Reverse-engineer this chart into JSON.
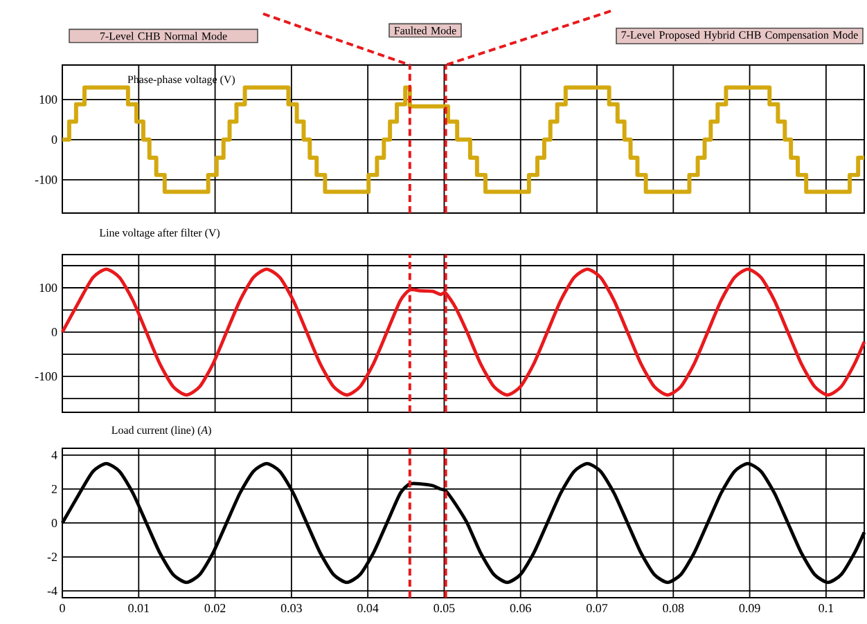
{
  "chart_data": [
    {
      "type": "step",
      "title": "Phase-phase voltage (V)",
      "color": "#d4a910",
      "xlim": [
        0,
        0.105
      ],
      "ylim": [
        -183,
        186
      ],
      "xticks": [
        0,
        0.01,
        0.02,
        0.03,
        0.04,
        0.05,
        0.06,
        0.07,
        0.08,
        0.09,
        0.1
      ],
      "yticks": [
        100,
        0,
        -100
      ],
      "grid": true,
      "tick_labels": "y",
      "x": [
        0,
        0.0009,
        0.0018,
        0.0029,
        0.0086,
        0.0097,
        0.0106,
        0.0114,
        0.0123,
        0.0134,
        0.0191,
        0.0202,
        0.0211,
        0.0219,
        0.0228,
        0.0239,
        0.0296,
        0.0307,
        0.0316,
        0.0324,
        0.0333,
        0.0344,
        0.0401,
        0.0412,
        0.0421,
        0.0429,
        0.0438,
        0.0449,
        0.0455,
        0.0505,
        0.0517,
        0.0534,
        0.0543,
        0.0554,
        0.0611,
        0.0622,
        0.0631,
        0.0639,
        0.0648,
        0.0659,
        0.0716,
        0.0727,
        0.0736,
        0.0744,
        0.0753,
        0.0764,
        0.0821,
        0.0832,
        0.0841,
        0.0849,
        0.0858,
        0.0869,
        0.0926,
        0.0937,
        0.0946,
        0.0954,
        0.0963,
        0.0974,
        0.1031,
        0.1042,
        0.105
      ],
      "values": [
        0,
        45,
        88,
        130,
        88,
        45,
        0,
        -45,
        -88,
        -130,
        -88,
        -45,
        0,
        45,
        88,
        130,
        88,
        45,
        0,
        -45,
        -88,
        -130,
        -88,
        -45,
        0,
        45,
        88,
        130,
        83,
        45,
        0,
        -45,
        -88,
        -130,
        -88,
        -45,
        0,
        45,
        88,
        130,
        88,
        45,
        0,
        -45,
        -88,
        -130,
        -88,
        -45,
        0,
        45,
        88,
        130,
        88,
        45,
        0,
        -45,
        -88,
        -130,
        -88,
        -45,
        -45
      ],
      "ref_lines": [
        {
          "axis": "x",
          "value": 0.0455,
          "color": "#e8191c",
          "line_style": "dashed"
        },
        {
          "axis": "x",
          "value": 0.0502,
          "color": "#e8191c",
          "line_style": "dashed"
        }
      ],
      "annotations": [
        "7-Level CHB Normal Mode",
        "Faulted Mode",
        "7-Level Proposed Hybrid CHB Compensation Mode"
      ]
    },
    {
      "type": "line",
      "title": "Line voltage after filter (V)",
      "color": "#e8191c",
      "xlim": [
        0,
        0.105
      ],
      "ylim": [
        -181,
        175
      ],
      "xticks": [
        0,
        0.01,
        0.02,
        0.03,
        0.04,
        0.05,
        0.06,
        0.07,
        0.08,
        0.09,
        0.1
      ],
      "yticks": [
        {
          "value": 150,
          "label": null
        },
        100,
        {
          "value": 50,
          "label": null
        },
        0,
        {
          "value": -50,
          "label": null
        },
        -100,
        {
          "value": -150,
          "label": null
        }
      ],
      "grid": true,
      "tick_labels": "y",
      "x": [
        0,
        0.00225,
        0.004,
        0.00575,
        0.0075,
        0.00925,
        0.011,
        0.01275,
        0.0145,
        0.01625,
        0.018,
        0.01975,
        0.0215,
        0.02325,
        0.025,
        0.02675,
        0.0285,
        0.03025,
        0.032,
        0.03375,
        0.0355,
        0.03725,
        0.039,
        0.04075,
        0.0425,
        0.04425,
        0.0455,
        0.047,
        0.0485,
        0.0495,
        0.0502,
        0.0515,
        0.053,
        0.05475,
        0.0565,
        0.05825,
        0.06,
        0.06175,
        0.0635,
        0.06525,
        0.067,
        0.06875,
        0.0705,
        0.07225,
        0.074,
        0.07575,
        0.0775,
        0.07925,
        0.081,
        0.08275,
        0.0845,
        0.08625,
        0.088,
        0.08975,
        0.0915,
        0.09325,
        0.095,
        0.09675,
        0.0985,
        0.10025,
        0.102,
        0.10375,
        0.105
      ],
      "values": [
        0,
        71,
        123,
        142,
        123,
        71,
        0,
        -71,
        -123,
        -142,
        -123,
        -71,
        0,
        71,
        123,
        142,
        123,
        71,
        0,
        -71,
        -123,
        -142,
        -123,
        -71,
        0,
        71,
        95,
        93,
        92,
        85,
        88,
        55,
        0,
        -71,
        -123,
        -142,
        -123,
        -71,
        0,
        71,
        123,
        142,
        123,
        71,
        0,
        -71,
        -123,
        -142,
        -123,
        -71,
        0,
        71,
        123,
        142,
        123,
        71,
        0,
        -71,
        -123,
        -142,
        -123,
        -71,
        -22
      ],
      "ref_lines": [
        {
          "axis": "x",
          "value": 0.0455,
          "color": "#e8191c",
          "line_style": "dashed"
        },
        {
          "axis": "x",
          "value": 0.0502,
          "color": "#e8191c",
          "line_style": "dashed"
        }
      ]
    },
    {
      "type": "line",
      "title": "Load current (line) (*A*)",
      "color": "#000000",
      "xlim": [
        0,
        0.105
      ],
      "ylim": [
        -4.4,
        4.4
      ],
      "xticks": [
        0,
        0.01,
        0.02,
        0.03,
        0.04,
        0.05,
        0.06,
        0.07,
        0.08,
        0.09,
        0.1
      ],
      "yticks": [
        4,
        2,
        0,
        -2,
        -4
      ],
      "grid": true,
      "x": [
        0,
        0.00225,
        0.004,
        0.00575,
        0.0075,
        0.00925,
        0.011,
        0.01275,
        0.0145,
        0.01625,
        0.018,
        0.01975,
        0.0215,
        0.02325,
        0.025,
        0.02675,
        0.0285,
        0.03025,
        0.032,
        0.03375,
        0.0355,
        0.03725,
        0.039,
        0.04075,
        0.0425,
        0.04425,
        0.0455,
        0.047,
        0.0485,
        0.0495,
        0.0502,
        0.0515,
        0.053,
        0.05475,
        0.0565,
        0.05825,
        0.06,
        0.06175,
        0.0635,
        0.06525,
        0.067,
        0.06875,
        0.0705,
        0.07225,
        0.074,
        0.07575,
        0.0775,
        0.07925,
        0.081,
        0.08275,
        0.0845,
        0.08625,
        0.088,
        0.08975,
        0.0915,
        0.09325,
        0.095,
        0.09675,
        0.0985,
        0.10025,
        0.102,
        0.10375,
        0.105
      ],
      "values": [
        0,
        1.75,
        3.03,
        3.5,
        3.03,
        1.75,
        0,
        -1.75,
        -3.03,
        -3.5,
        -3.03,
        -1.75,
        0,
        1.75,
        3.03,
        3.5,
        3.03,
        1.75,
        0,
        -1.75,
        -3.03,
        -3.5,
        -3.03,
        -1.75,
        0,
        1.75,
        2.3,
        2.3,
        2.2,
        2.0,
        1.9,
        1.1,
        0,
        -1.75,
        -3.03,
        -3.5,
        -3.03,
        -1.75,
        0,
        1.75,
        3.03,
        3.5,
        3.03,
        1.75,
        0,
        -1.75,
        -3.03,
        -3.5,
        -3.03,
        -1.75,
        0,
        1.75,
        3.03,
        3.5,
        3.03,
        1.75,
        0,
        -1.75,
        -3.03,
        -3.5,
        -3.03,
        -1.75,
        -0.55
      ],
      "ref_lines": [
        {
          "axis": "x",
          "value": 0.0455,
          "color": "#e8191c",
          "line_style": "dashed"
        },
        {
          "axis": "x",
          "value": 0.0502,
          "color": "#e8191c",
          "line_style": "dashed"
        }
      ]
    }
  ]
}
